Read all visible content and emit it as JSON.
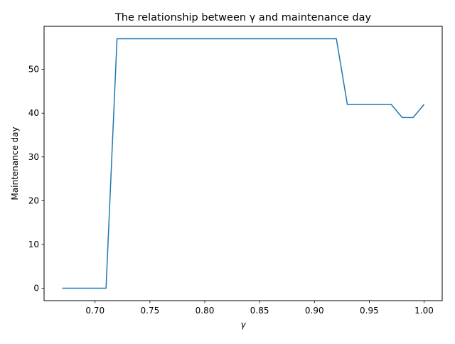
{
  "chart_data": {
    "type": "line",
    "title": "The relationship between γ and maintenance day",
    "xlabel": "γ",
    "ylabel": "Maintenance day",
    "xlim": [
      0.6535,
      1.0165
    ],
    "ylim": [
      -2.85,
      59.85
    ],
    "xticks": [
      0.7,
      0.75,
      0.8,
      0.85,
      0.9,
      0.95,
      1.0
    ],
    "xtick_labels": [
      "0.70",
      "0.75",
      "0.80",
      "0.85",
      "0.90",
      "0.95",
      "1.00"
    ],
    "yticks": [
      0,
      10,
      20,
      30,
      40,
      50
    ],
    "ytick_labels": [
      "0",
      "10",
      "20",
      "30",
      "40",
      "50"
    ],
    "grid": false,
    "series": [
      {
        "color": "#1f77b4",
        "x": [
          0.67,
          0.68,
          0.69,
          0.7,
          0.71,
          0.72,
          0.73,
          0.74,
          0.75,
          0.76,
          0.77,
          0.78,
          0.79,
          0.8,
          0.81,
          0.82,
          0.83,
          0.84,
          0.85,
          0.86,
          0.87,
          0.88,
          0.89,
          0.9,
          0.91,
          0.92,
          0.93,
          0.94,
          0.95,
          0.96,
          0.97,
          0.98,
          0.99,
          1.0
        ],
        "y": [
          0,
          0,
          0,
          0,
          0,
          57,
          57,
          57,
          57,
          57,
          57,
          57,
          57,
          57,
          57,
          57,
          57,
          57,
          57,
          57,
          57,
          57,
          57,
          57,
          57,
          57,
          42,
          42,
          42,
          42,
          42,
          39,
          39,
          42
        ]
      }
    ]
  }
}
